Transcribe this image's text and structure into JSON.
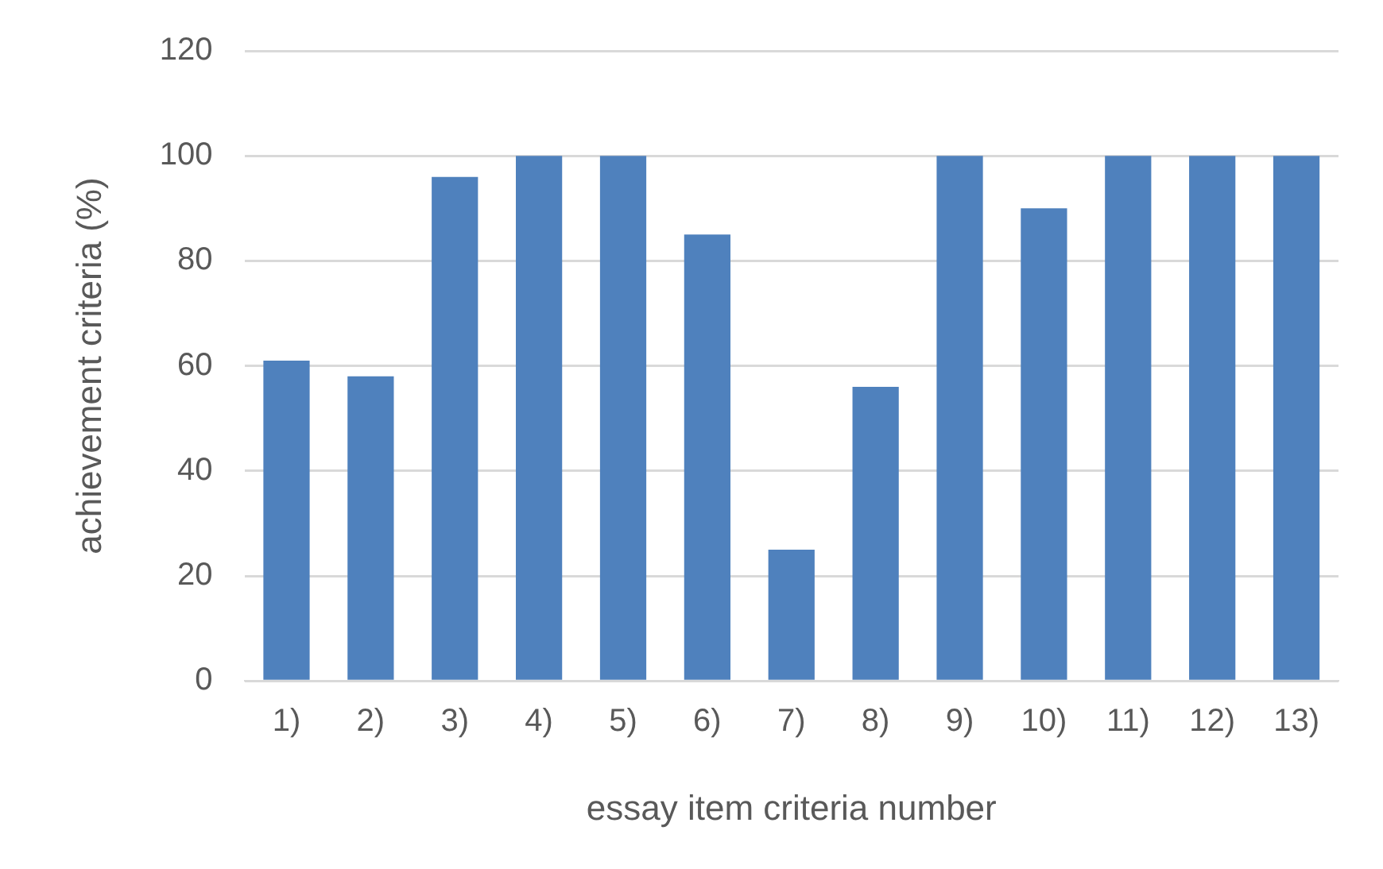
{
  "chart_data": {
    "type": "bar",
    "xlabel": "essay item criteria number",
    "ylabel": "achievement criteria (%)",
    "categories": [
      "1)",
      "2)",
      "3)",
      "4)",
      "5)",
      "6)",
      "7)",
      "8)",
      "9)",
      "10)",
      "11)",
      "12)",
      "13)"
    ],
    "values": [
      61,
      58,
      96,
      100,
      100,
      85,
      25,
      56,
      100,
      90,
      100,
      100,
      100
    ],
    "color": "#4f81bd",
    "ylim": [
      0,
      120
    ],
    "yticks": [
      0,
      20,
      40,
      60,
      80,
      100,
      120
    ],
    "grid": "y",
    "legend": false
  }
}
